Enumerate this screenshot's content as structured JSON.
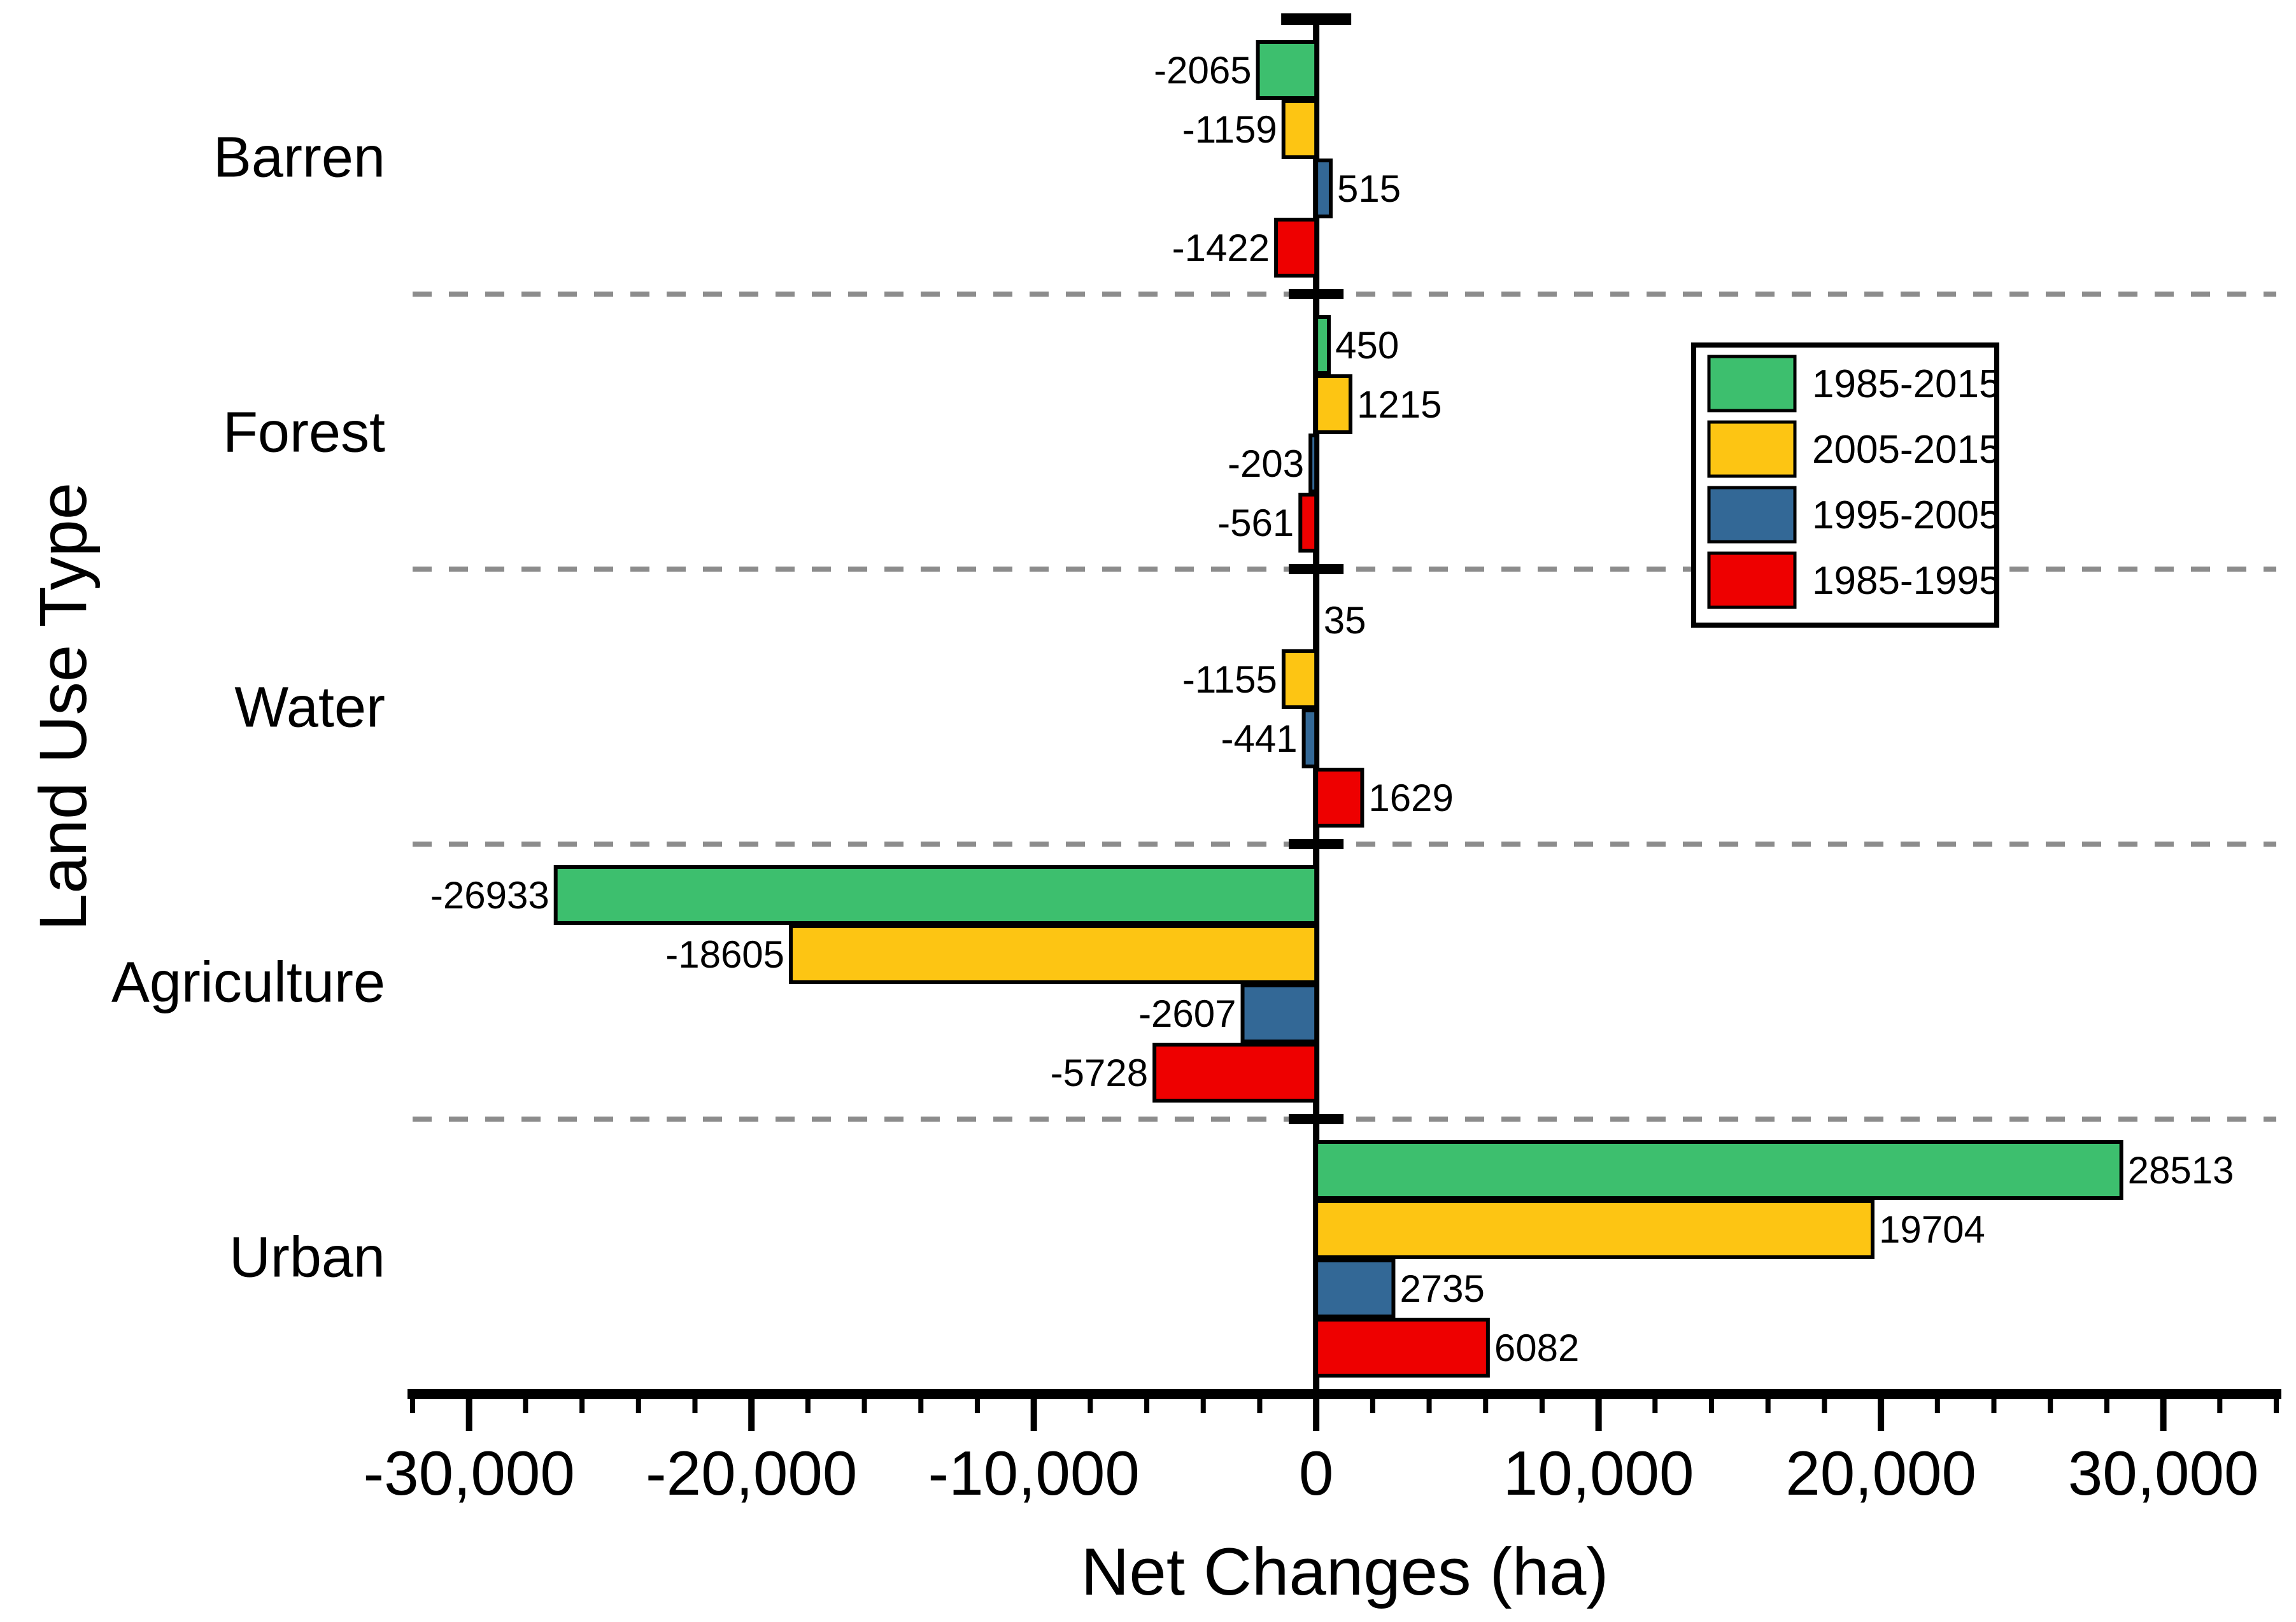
{
  "chart_data": {
    "type": "bar",
    "orientation": "horizontal",
    "xlabel": "Net Changes (ha)",
    "ylabel": "Land Use Type",
    "categories": [
      "Barren",
      "Forest",
      "Water",
      "Agriculture",
      "Urban"
    ],
    "series": [
      {
        "name": "1985-2015",
        "color": "#3DBF6E",
        "values": [
          -2065,
          450,
          35,
          -26933,
          28513
        ]
      },
      {
        "name": "2005-2015",
        "color": "#FDC513",
        "values": [
          -1159,
          1215,
          -1155,
          -18605,
          19704
        ]
      },
      {
        "name": "1995-2005",
        "color": "#336896",
        "values": [
          515,
          -203,
          -441,
          -2607,
          2735
        ]
      },
      {
        "name": "1985-1995",
        "color": "#EE0000",
        "values": [
          -1422,
          -561,
          1629,
          -5728,
          6082
        ]
      }
    ],
    "value_labels": [
      [
        "-2065",
        "-1159",
        "515",
        "-1422"
      ],
      [
        "450",
        "1215",
        "-203",
        "-561"
      ],
      [
        "35",
        "-1155",
        "-441",
        "1629"
      ],
      [
        "-26933",
        "-18605",
        "-2607",
        "-5728"
      ],
      [
        "28513",
        "19704",
        "2735",
        "6082"
      ]
    ],
    "x_axis": {
      "range": [
        -32000,
        34000
      ],
      "tick_values": [
        -30000,
        -20000,
        -10000,
        0,
        10000,
        20000,
        30000
      ],
      "tick_labels": [
        "-30,000",
        "-20,000",
        "-10,000",
        "0",
        "10,000",
        "20,000",
        "30,000"
      ],
      "minor_tick_step": 2000
    },
    "legend": {
      "position": "upper right",
      "entries": [
        "1985-2015",
        "2005-2015",
        "1995-2005",
        "1985-1995"
      ]
    },
    "grid": "dashed gray separators between category groups",
    "colors": {
      "axis": "#000000",
      "separator": "#8C8C8C",
      "background": "#FFFFFF",
      "bar_border": "#000000"
    }
  }
}
